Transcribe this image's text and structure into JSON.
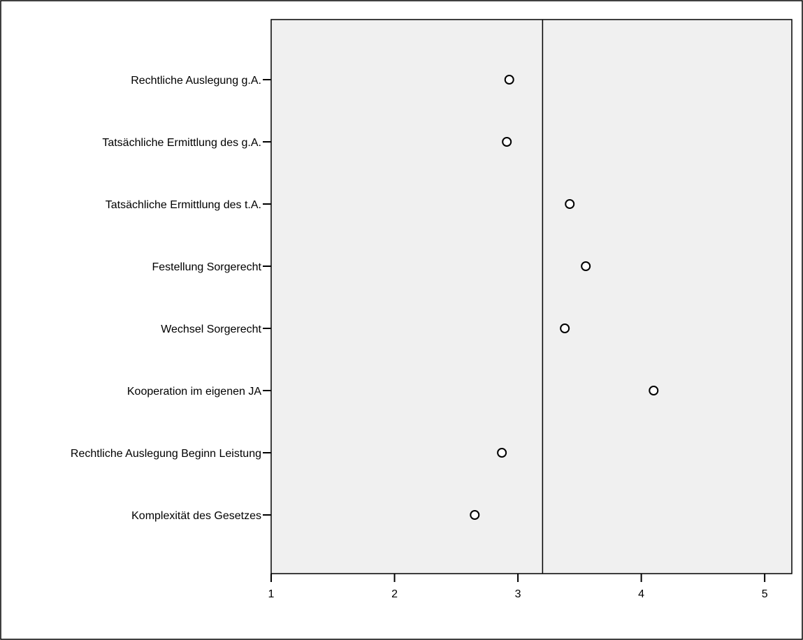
{
  "chart_data": {
    "type": "scatter",
    "orientation": "horizontal",
    "title": "",
    "xlabel": "",
    "ylabel": "",
    "categories": [
      "Rechtliche Auslegung g.A.",
      "Tatsächliche Ermittlung des g.A.",
      "Tatsächliche Ermittlung des t.A.",
      "Festellung Sorgerecht",
      "Wechsel Sorgerecht",
      "Kooperation im eigenen JA",
      "Rechtliche Auslegung Beginn Leistung",
      "Komplexität des Gesetzes"
    ],
    "values": [
      2.93,
      2.91,
      3.42,
      3.55,
      3.38,
      4.1,
      2.87,
      2.65
    ],
    "xlim": [
      1,
      5.22
    ],
    "xticks": [
      1,
      2,
      3,
      4,
      5
    ],
    "reference_line": 3.2,
    "grid": false,
    "legend": "none",
    "colors": {
      "plot_background": "#f0f0f0",
      "marker_fill": "#ffffff",
      "marker_stroke": "#000000",
      "axis": "#000000"
    }
  }
}
